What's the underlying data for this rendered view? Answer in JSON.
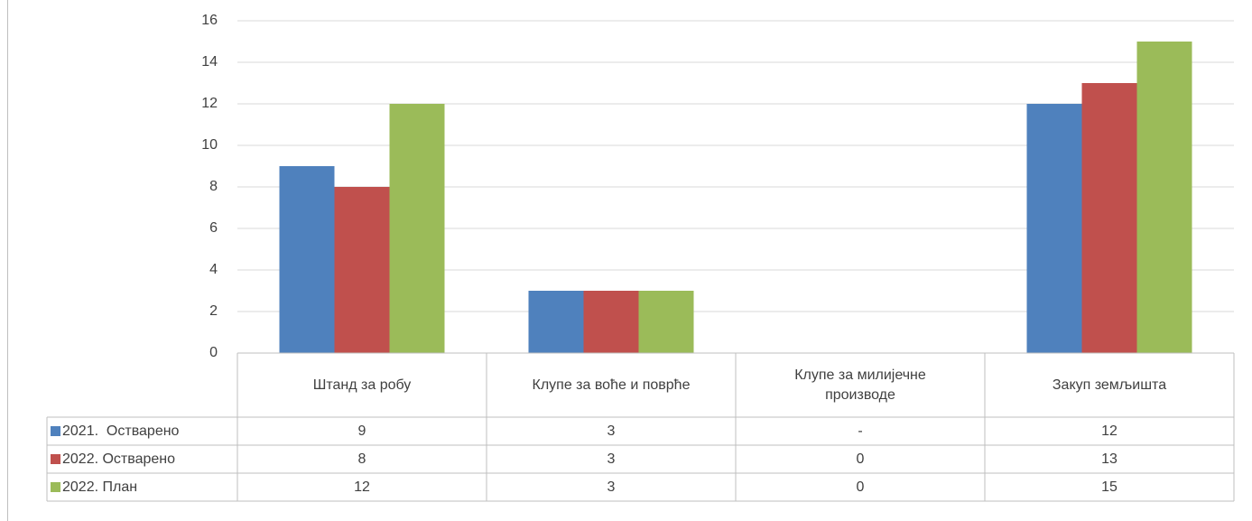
{
  "chart_data": {
    "type": "bar",
    "categories": [
      "Штанд за робу",
      "Клупе за воће и поврће",
      "Клупе за милијечне производе",
      "Закуп земљишта"
    ],
    "series": [
      {
        "name": "2021.  Остварено",
        "color": "#4f81bd",
        "values": [
          9,
          3,
          null,
          12
        ],
        "value_labels": [
          "9",
          "3",
          "-",
          "12"
        ]
      },
      {
        "name": "2022. Остварено",
        "color": "#c0504d",
        "values": [
          8,
          3,
          0,
          13
        ]
      },
      {
        "name": "2022. План",
        "color": "#9bbb59",
        "values": [
          12,
          3,
          0,
          15
        ]
      }
    ],
    "ylim": [
      0,
      16
    ],
    "yticks": [
      0,
      2,
      4,
      6,
      8,
      10,
      12,
      14,
      16
    ],
    "grid": true,
    "legend": "table"
  }
}
